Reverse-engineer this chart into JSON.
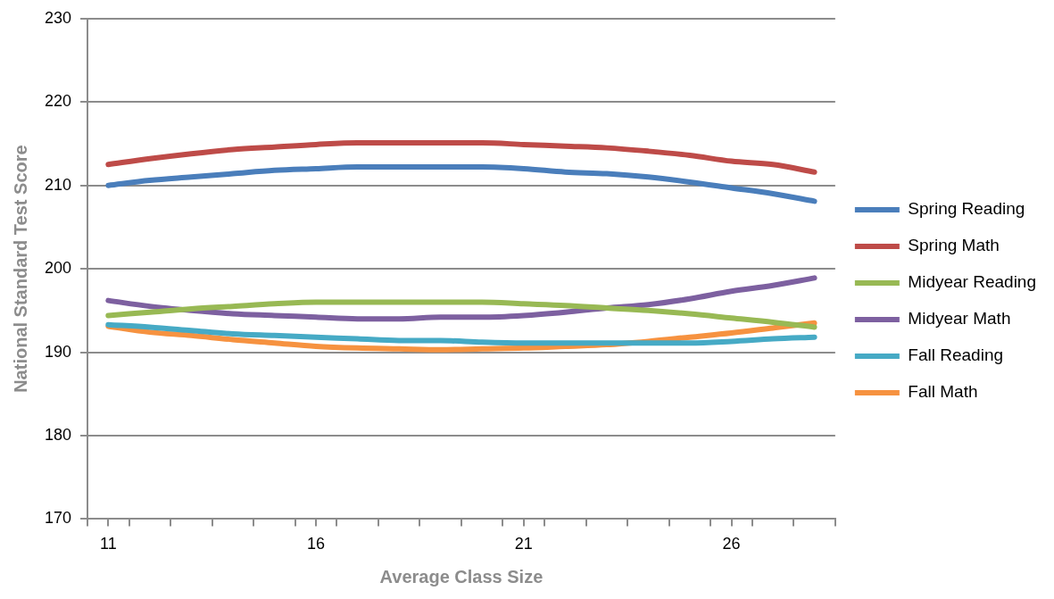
{
  "chart_data": {
    "type": "line",
    "xlabel": "Average Class Size",
    "ylabel": "National Standard Test Score",
    "x": [
      11,
      12,
      13,
      14,
      15,
      16,
      17,
      18,
      19,
      20,
      21,
      22,
      23,
      24,
      25,
      26,
      27,
      28
    ],
    "xlim": [
      10.5,
      28.5
    ],
    "xticks": [
      {
        "value": 10.5,
        "label": null
      },
      {
        "value": 11,
        "label": "11"
      },
      {
        "value": 11.5,
        "label": null
      },
      {
        "value": 12.5,
        "label": null
      },
      {
        "value": 13.5,
        "label": null
      },
      {
        "value": 14.5,
        "label": null
      },
      {
        "value": 15.5,
        "label": null
      },
      {
        "value": 16,
        "label": "16"
      },
      {
        "value": 16.5,
        "label": null
      },
      {
        "value": 17.5,
        "label": null
      },
      {
        "value": 18.5,
        "label": null
      },
      {
        "value": 19.5,
        "label": null
      },
      {
        "value": 20.5,
        "label": null
      },
      {
        "value": 21,
        "label": "21"
      },
      {
        "value": 21.5,
        "label": null
      },
      {
        "value": 22.5,
        "label": null
      },
      {
        "value": 23.5,
        "label": null
      },
      {
        "value": 24.5,
        "label": null
      },
      {
        "value": 25.5,
        "label": null
      },
      {
        "value": 26,
        "label": "26"
      },
      {
        "value": 26.5,
        "label": null
      },
      {
        "value": 27.5,
        "label": null
      },
      {
        "value": 28.5,
        "label": null
      }
    ],
    "ylim": [
      170,
      230
    ],
    "yticks": [
      170,
      180,
      190,
      200,
      210,
      220,
      230
    ],
    "grid": "y",
    "legend": "right",
    "marker": "none",
    "line_style": "solid",
    "series": [
      {
        "name": "Spring Reading",
        "color": "#4a7ebb",
        "values": [
          210,
          210.6,
          211,
          211.4,
          211.8,
          212,
          212.2,
          212.2,
          212.2,
          212.2,
          212,
          211.6,
          211.4,
          211,
          210.4,
          209.7,
          209,
          208.1
        ]
      },
      {
        "name": "Spring Math",
        "color": "#be4b48",
        "values": [
          212.5,
          213.2,
          213.8,
          214.3,
          214.6,
          214.9,
          215.1,
          215.1,
          215.1,
          215.1,
          214.9,
          214.7,
          214.5,
          214.1,
          213.6,
          212.9,
          212.5,
          211.6
        ]
      },
      {
        "name": "Midyear Reading",
        "color": "#98b954",
        "values": [
          194.4,
          194.8,
          195.2,
          195.5,
          195.8,
          196,
          196,
          196,
          196,
          196,
          195.8,
          195.6,
          195.3,
          195,
          194.6,
          194.1,
          193.6,
          193
        ]
      },
      {
        "name": "Midyear Math",
        "color": "#7d60a0",
        "values": [
          196.2,
          195.5,
          195,
          194.6,
          194.4,
          194.2,
          194,
          194,
          194.2,
          194.2,
          194.4,
          194.8,
          195.3,
          195.7,
          196.4,
          197.3,
          198,
          198.9
        ]
      },
      {
        "name": "Fall Reading",
        "color": "#46aac5",
        "values": [
          193.3,
          193,
          192.6,
          192.2,
          192,
          191.8,
          191.6,
          191.4,
          191.4,
          191.2,
          191.1,
          191.1,
          191.1,
          191.1,
          191.1,
          191.3,
          191.6,
          191.8
        ]
      },
      {
        "name": "Fall Math",
        "color": "#f69240",
        "values": [
          193.1,
          192.4,
          192,
          191.5,
          191.1,
          190.7,
          190.5,
          190.4,
          190.3,
          190.4,
          190.5,
          190.7,
          190.9,
          191.3,
          191.8,
          192.3,
          192.9,
          193.5
        ]
      }
    ]
  }
}
